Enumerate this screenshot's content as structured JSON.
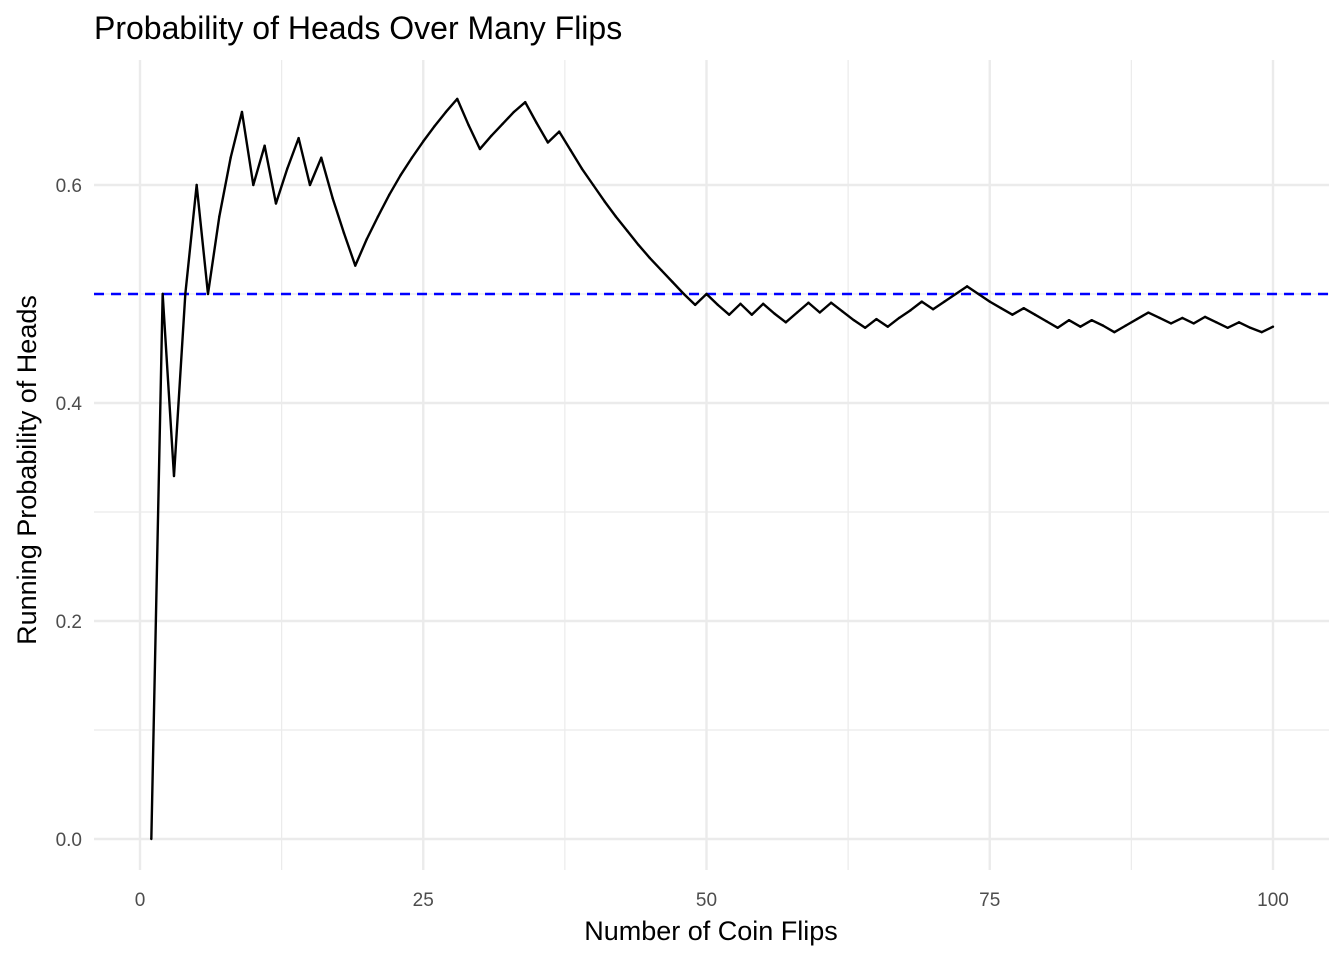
{
  "chart_data": {
    "type": "line",
    "title": "Probability of Heads Over Many Flips",
    "xlabel": "Number of Coin Flips",
    "ylabel": "Running Probability of Heads",
    "xlim": [
      0,
      100
    ],
    "ylim": [
      0,
      0.67
    ],
    "xticks": [
      0,
      25,
      50,
      75,
      100
    ],
    "yticks": [
      0.0,
      0.2,
      0.4,
      0.6
    ],
    "xtick_labels": [
      "0",
      "25",
      "50",
      "75",
      "100"
    ],
    "ytick_labels": [
      "0.0",
      "0.2",
      "0.4",
      "0.6"
    ],
    "grid": true,
    "reference_line": {
      "y": 0.5,
      "style": "dashed",
      "color": "#0000ff"
    },
    "series": [
      {
        "color": "#000000",
        "x": [
          1,
          2,
          3,
          4,
          5,
          6,
          7,
          8,
          9,
          10,
          11,
          12,
          13,
          14,
          15,
          16,
          17,
          18,
          19,
          20,
          21,
          22,
          23,
          24,
          25,
          26,
          27,
          28,
          29,
          30,
          31,
          32,
          33,
          34,
          35,
          36,
          37,
          38,
          39,
          40,
          41,
          42,
          43,
          44,
          45,
          46,
          47,
          48,
          49,
          50,
          51,
          52,
          53,
          54,
          55,
          56,
          57,
          58,
          59,
          60,
          61,
          62,
          63,
          64,
          65,
          66,
          67,
          68,
          69,
          70,
          71,
          72,
          73,
          74,
          75,
          76,
          77,
          78,
          79,
          80,
          81,
          82,
          83,
          84,
          85,
          86,
          87,
          88,
          89,
          90,
          91,
          92,
          93,
          94,
          95,
          96,
          97,
          98,
          99,
          100
        ],
        "y": [
          0.0,
          0.5,
          0.333,
          0.5,
          0.6,
          0.5,
          0.571,
          0.625,
          0.667,
          0.6,
          0.636,
          0.583,
          0.615,
          0.643,
          0.6,
          0.625,
          0.588,
          0.556,
          0.526,
          0.55,
          0.571,
          0.591,
          0.609,
          0.625,
          0.64,
          0.654,
          0.667,
          0.679,
          0.655,
          0.633,
          0.645,
          0.656,
          0.667,
          0.676,
          0.657,
          0.639,
          0.649,
          0.632,
          0.615,
          0.6,
          0.585,
          0.571,
          0.558,
          0.545,
          0.533,
          0.522,
          0.511,
          0.5,
          0.49,
          0.5,
          0.49,
          0.481,
          0.491,
          0.481,
          0.491,
          0.482,
          0.474,
          0.483,
          0.492,
          0.483,
          0.492,
          0.484,
          0.476,
          0.469,
          0.477,
          0.47,
          0.478,
          0.485,
          0.493,
          0.486,
          0.493,
          0.5,
          0.507,
          0.5,
          0.493,
          0.487,
          0.481,
          0.487,
          0.481,
          0.475,
          0.469,
          0.476,
          0.47,
          0.476,
          0.471,
          0.465,
          0.471,
          0.477,
          0.483,
          0.478,
          0.473,
          0.478,
          0.473,
          0.479,
          0.474,
          0.469,
          0.474,
          0.469,
          0.465,
          0.47
        ]
      }
    ]
  }
}
